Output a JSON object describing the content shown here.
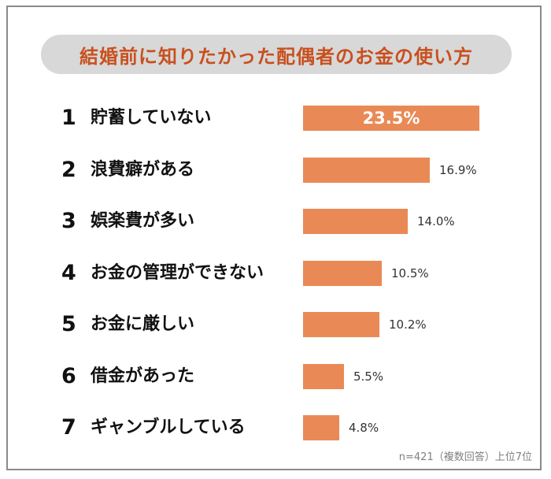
{
  "title": "結婚前に知りたかった配偶者のお金の使い方",
  "chart_data": {
    "type": "bar",
    "orientation": "horizontal",
    "title": "結婚前に知りたかった配偶者のお金の使い方",
    "ranks": [
      "1",
      "2",
      "3",
      "4",
      "5",
      "6",
      "7"
    ],
    "categories": [
      "貯蓄していない",
      "浪費癖がある",
      "娯楽費が多い",
      "お金の管理ができない",
      "お金に厳しい",
      "借金があった",
      "ギャンブルしている"
    ],
    "values": [
      23.5,
      16.9,
      14.0,
      10.5,
      10.2,
      5.5,
      4.8
    ],
    "value_labels": [
      "23.5%",
      "16.9%",
      "14.0%",
      "10.5%",
      "10.2%",
      "5.5%",
      "4.8%"
    ],
    "bar_color": "#e98a56"
  },
  "note": "n=421（複数回答）上位7位",
  "colors": {
    "title": "#c8501e",
    "title_bg": "#d8d8d8",
    "bar": "#e98a56"
  }
}
